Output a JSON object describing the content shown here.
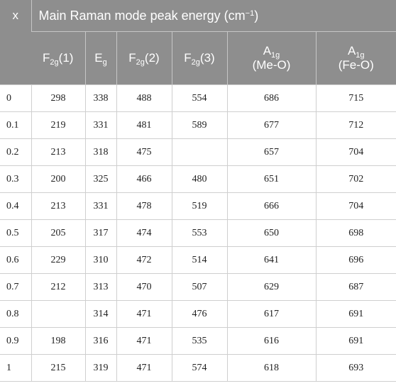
{
  "header": {
    "x_label": "x",
    "title": "Main Raman mode peak energy (cm",
    "title_sup": "−1",
    "title_end": ")",
    "columns": [
      {
        "main": "F",
        "sub": "2g",
        "suffix": "(1)"
      },
      {
        "main": "E",
        "sub": "g",
        "suffix": ""
      },
      {
        "main": "F",
        "sub": "2g",
        "suffix": "(2)"
      },
      {
        "main": "F",
        "sub": "2g",
        "suffix": "(3)"
      },
      {
        "main": "A",
        "sub": "1g",
        "line2": "(Me-O)"
      },
      {
        "main": "A",
        "sub": "1g",
        "line2": "(Fe-O)"
      }
    ]
  },
  "rows": [
    [
      "0",
      "298",
      "338",
      "488",
      "554",
      "686",
      "715"
    ],
    [
      "0.1",
      "219",
      "331",
      "481",
      "589",
      "677",
      "712"
    ],
    [
      "0.2",
      "213",
      "318",
      "475",
      "",
      "657",
      "704"
    ],
    [
      "0.3",
      "200",
      "325",
      "466",
      "480",
      "651",
      "702"
    ],
    [
      "0.4",
      "213",
      "331",
      "478",
      "519",
      "666",
      "704"
    ],
    [
      "0.5",
      "205",
      "317",
      "474",
      "553",
      "650",
      "698"
    ],
    [
      "0.6",
      "229",
      "310",
      "472",
      "514",
      "641",
      "696"
    ],
    [
      "0.7",
      "212",
      "313",
      "470",
      "507",
      "629",
      "687"
    ],
    [
      "0.8",
      "",
      "314",
      "471",
      "476",
      "617",
      "691"
    ],
    [
      "0.9",
      "198",
      "316",
      "471",
      "535",
      "616",
      "691"
    ],
    [
      "1",
      "215",
      "319",
      "471",
      "574",
      "618",
      "693"
    ]
  ]
}
